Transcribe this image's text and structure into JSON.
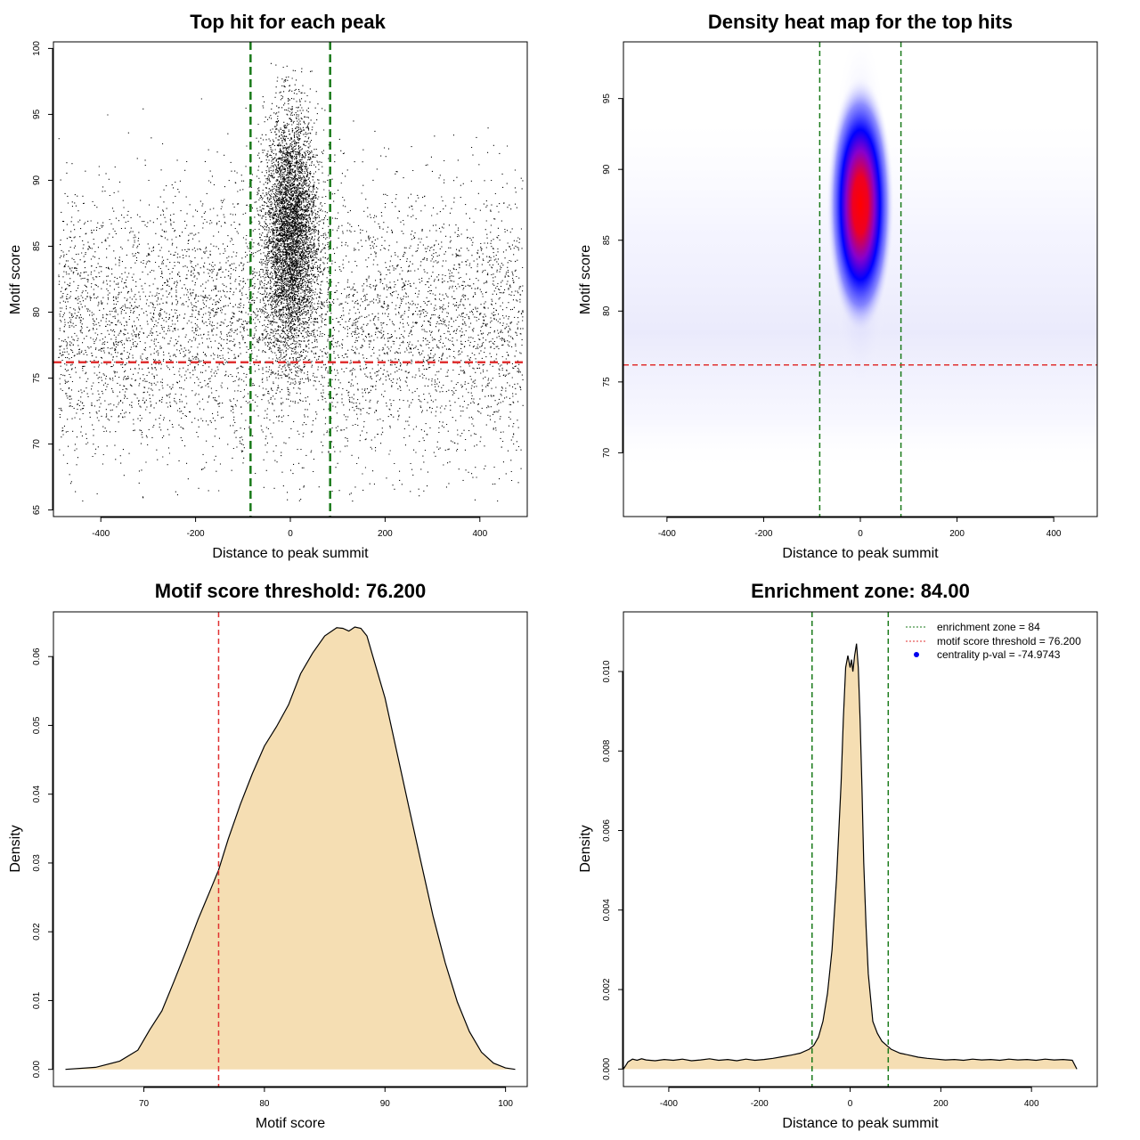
{
  "chart_data": [
    {
      "type": "scatter",
      "title": "Top hit for each peak",
      "xlabel": "Distance to peak summit",
      "ylabel": "Motif score",
      "xlim": [
        -500,
        500
      ],
      "ylim": [
        64.5,
        100.5
      ],
      "xticks": [
        -400,
        -200,
        0,
        200,
        400
      ],
      "yticks": [
        65,
        70,
        75,
        80,
        85,
        90,
        95,
        100
      ],
      "vlines": [
        -84,
        84
      ],
      "hline": 76.2,
      "background_points": {
        "x_range": [
          -490,
          490
        ],
        "y_range": [
          65.6,
          96.5
        ],
        "mode": 79,
        "approx_count": 6000
      },
      "central_cluster": {
        "x_center": 0,
        "x_spread": 28,
        "y_center": 86,
        "y_spread": 4.5,
        "y_range": [
          74.5,
          98.9
        ],
        "approx_count": 20000
      },
      "colors": {
        "points": "#000000",
        "vline": "#1a7a1a",
        "hline": "#e03030"
      }
    },
    {
      "type": "heatmap",
      "title": "Density heat map for the top hits",
      "xlabel": "Distance to peak summit",
      "ylabel": "Motif score",
      "xlim": [
        -490,
        490
      ],
      "ylim": [
        65.5,
        99
      ],
      "xticks": [
        -400,
        -200,
        0,
        200,
        400
      ],
      "yticks": [
        70,
        75,
        80,
        85,
        90,
        95
      ],
      "vlines": [
        -84,
        84
      ],
      "hline": 76.2,
      "hotspot": {
        "x": 0,
        "y": 87.5
      },
      "colors": {
        "low": "#ffffff",
        "mid": "#0000ff",
        "high": "#ff0000",
        "vline": "#1a7a1a",
        "hline": "#e03030"
      }
    },
    {
      "type": "area",
      "title": "Motif score threshold: 76.200",
      "xlabel": "Motif score",
      "ylabel": "Density",
      "xlim": [
        62.5,
        101.8
      ],
      "ylim": [
        -0.0025,
        0.0665
      ],
      "xticks": [
        70,
        80,
        90,
        100
      ],
      "yticks": [
        0.0,
        0.01,
        0.02,
        0.03,
        0.04,
        0.05,
        0.06
      ],
      "ytick_labels": [
        "0.00",
        "0.01",
        "0.02",
        "0.03",
        "0.04",
        "0.05",
        "0.06"
      ],
      "vline": 76.2,
      "x": [
        63.5,
        66,
        68,
        69.5,
        70.5,
        71.5,
        72.5,
        73.5,
        74.5,
        75.5,
        76.2,
        77,
        78,
        79,
        80,
        81,
        82,
        83,
        84,
        85,
        86,
        86.5,
        87,
        87.5,
        88,
        88.5,
        89,
        90,
        91,
        92,
        93,
        94,
        95,
        96,
        97,
        98,
        99,
        100,
        100.8
      ],
      "y": [
        0.0,
        0.0003,
        0.0012,
        0.0028,
        0.0058,
        0.0085,
        0.0128,
        0.0172,
        0.0218,
        0.026,
        0.029,
        0.0335,
        0.0385,
        0.043,
        0.047,
        0.0498,
        0.053,
        0.0575,
        0.0605,
        0.063,
        0.0642,
        0.0641,
        0.0637,
        0.0643,
        0.0641,
        0.063,
        0.06,
        0.054,
        0.046,
        0.038,
        0.03,
        0.0222,
        0.0155,
        0.0098,
        0.0055,
        0.0025,
        0.0009,
        0.0002,
        0.0
      ],
      "colors": {
        "fill": "#f5deb3",
        "line": "#000000",
        "vline": "#e03030"
      }
    },
    {
      "type": "area",
      "title": "Enrichment zone: 84.00",
      "xlabel": "Distance to peak summit",
      "ylabel": "Density",
      "xlim": [
        -500,
        545
      ],
      "ylim": [
        -0.00044,
        0.0115
      ],
      "xticks": [
        -400,
        -200,
        0,
        200,
        400
      ],
      "yticks": [
        0.0,
        0.002,
        0.004,
        0.006,
        0.008,
        0.01
      ],
      "ytick_labels": [
        "0.000",
        "0.002",
        "0.004",
        "0.006",
        "0.008",
        "0.010"
      ],
      "vlines": [
        -84,
        84
      ],
      "x": [
        -500,
        -490,
        -480,
        -470,
        -460,
        -450,
        -430,
        -410,
        -390,
        -370,
        -350,
        -330,
        -310,
        -290,
        -270,
        -250,
        -230,
        -210,
        -190,
        -170,
        -150,
        -130,
        -110,
        -90,
        -80,
        -70,
        -60,
        -50,
        -40,
        -30,
        -20,
        -15,
        -10,
        -5,
        0,
        3,
        6,
        10,
        14,
        18,
        22,
        26,
        30,
        35,
        40,
        50,
        60,
        70,
        80,
        90,
        110,
        130,
        150,
        170,
        190,
        210,
        230,
        250,
        270,
        290,
        310,
        330,
        350,
        370,
        390,
        410,
        430,
        450,
        470,
        490,
        500
      ],
      "y": [
        0.0,
        0.00018,
        0.00025,
        0.00022,
        0.00026,
        0.00023,
        0.00021,
        0.00024,
        0.00022,
        0.00025,
        0.00021,
        0.00023,
        0.00026,
        0.00022,
        0.00024,
        0.00021,
        0.00025,
        0.00022,
        0.00024,
        0.00027,
        0.00031,
        0.00035,
        0.0004,
        0.0005,
        0.0006,
        0.0008,
        0.0012,
        0.0019,
        0.003,
        0.0048,
        0.0072,
        0.0088,
        0.0101,
        0.0104,
        0.0101,
        0.0103,
        0.01,
        0.0104,
        0.0107,
        0.0101,
        0.0088,
        0.0071,
        0.0052,
        0.0036,
        0.0024,
        0.0012,
        0.0009,
        0.0007,
        0.0006,
        0.0005,
        0.0004,
        0.00035,
        0.0003,
        0.00027,
        0.00025,
        0.00023,
        0.00024,
        0.00022,
        0.00025,
        0.00023,
        0.00024,
        0.00022,
        0.00025,
        0.00023,
        0.00024,
        0.00022,
        0.00025,
        0.00023,
        0.00024,
        0.00022,
        0.0
      ],
      "legend": {
        "position": "top-right",
        "entries": [
          {
            "label": "enrichment zone = 84",
            "style": "dotted",
            "color": "#1a7a1a"
          },
          {
            "label": "motif score threshold = 76.200",
            "style": "dotted",
            "color": "#e03030"
          },
          {
            "label": "centrality p-val = -74.9743",
            "style": "point",
            "color": "#0000ee"
          }
        ]
      },
      "colors": {
        "fill": "#f5deb3",
        "line": "#000000",
        "vline": "#1a7a1a"
      }
    }
  ]
}
